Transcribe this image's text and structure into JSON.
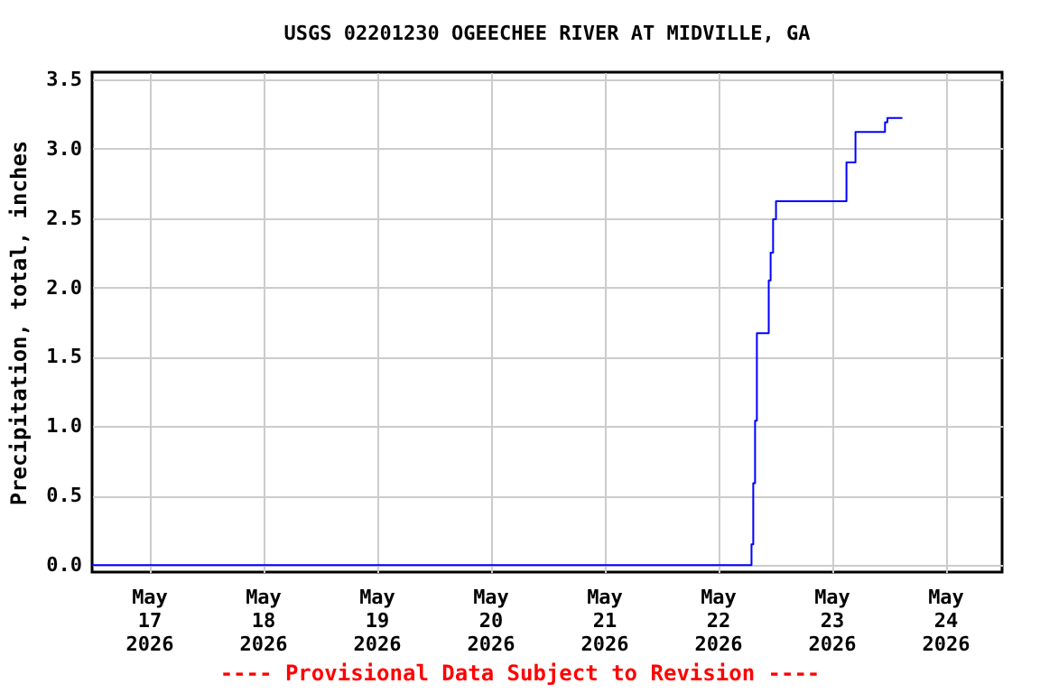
{
  "chart_data": {
    "type": "step",
    "title": "USGS 02201230 OGEECHEE RIVER AT MIDVILLE, GA",
    "ylabel": "Precipitation, total, inches",
    "annotations": [
      "---- Provisional Data Subject to Revision ----"
    ],
    "x": [
      "2026-05-16T12:00",
      "2026-05-22T07:08",
      "2026-05-22T07:30",
      "2026-05-22T07:53",
      "2026-05-22T08:16",
      "2026-05-22T10:46",
      "2026-05-22T11:10",
      "2026-05-22T11:41",
      "2026-05-22T12:18",
      "2026-05-23T03:10",
      "2026-05-23T05:04",
      "2026-05-23T11:18",
      "2026-05-23T11:48",
      "2026-05-23T14:58"
    ],
    "series": [
      {
        "color": "#0000ff",
        "values": [
          0,
          0.15,
          0.59,
          1.04,
          1.67,
          2.05,
          2.25,
          2.49,
          2.62,
          2.9,
          3.12,
          3.19,
          3.22,
          3.22
        ]
      }
    ],
    "xlim": [
      "2026-05-16T12:00",
      "2026-05-24T12:00"
    ],
    "xticks": [
      {
        "value": "2026-05-17",
        "label": "May\n17\n2026"
      },
      {
        "value": "2026-05-18",
        "label": "May\n18\n2026"
      },
      {
        "value": "2026-05-19",
        "label": "May\n19\n2026"
      },
      {
        "value": "2026-05-20",
        "label": "May\n20\n2026"
      },
      {
        "value": "2026-05-21",
        "label": "May\n21\n2026"
      },
      {
        "value": "2026-05-22",
        "label": "May\n22\n2026"
      },
      {
        "value": "2026-05-23",
        "label": "May\n23\n2026"
      },
      {
        "value": "2026-05-24",
        "label": "May\n24\n2026"
      }
    ],
    "ylim": [
      -0.05,
      3.55
    ],
    "yticks": [
      {
        "value": 0,
        "label": "0.0"
      },
      {
        "value": 0.5,
        "label": "0.5"
      },
      {
        "value": 1,
        "label": "1.0"
      },
      {
        "value": 1.5,
        "label": "1.5"
      },
      {
        "value": 2,
        "label": "2.0"
      },
      {
        "value": 2.5,
        "label": "2.5"
      },
      {
        "value": 3,
        "label": "3.0"
      },
      {
        "value": 3.5,
        "label": "3.5"
      }
    ],
    "grid": true,
    "marker": "none",
    "line_style": "solid"
  }
}
